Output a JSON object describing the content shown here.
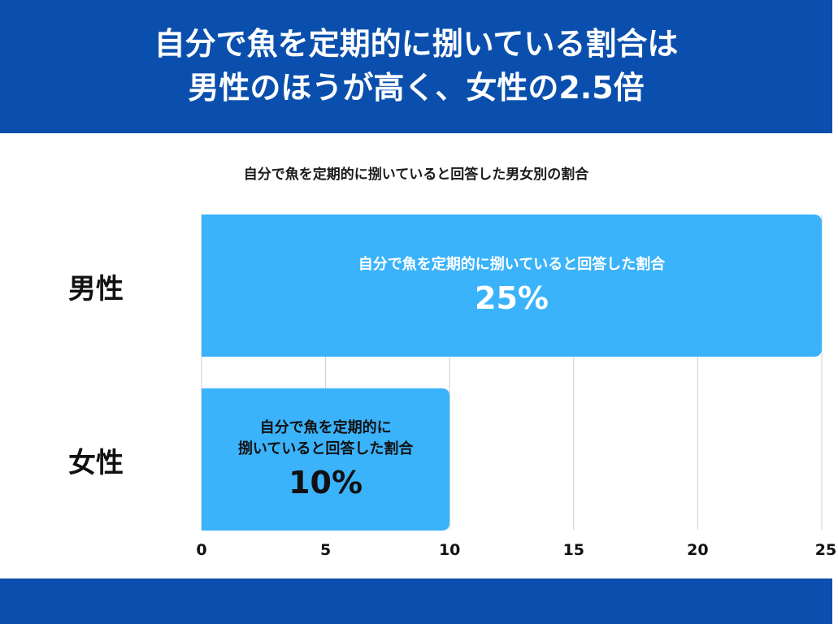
{
  "header": {
    "line1": "自分で魚を定期的に捌いている割合は",
    "line2": "男性のほうが高く、女性の2.5倍"
  },
  "colors": {
    "band": "#0a4fad",
    "bar": "#3bb3fb",
    "grid": "#cccccc"
  },
  "chart_data": {
    "type": "bar",
    "orientation": "horizontal",
    "title": "自分で魚を定期的に捌いていると回答した男女別の割合",
    "categories": [
      "男性",
      "女性"
    ],
    "values": [
      25,
      10
    ],
    "bar_labels": [
      {
        "desc": "自分で魚を定期的に捌いていると回答した割合",
        "value": "25%"
      },
      {
        "desc": "自分で魚を定期的に\n捌いていると回答した割合",
        "value": "10%"
      }
    ],
    "xlim": [
      0,
      25
    ],
    "xticks": [
      "0",
      "5",
      "10",
      "15",
      "20",
      "25"
    ],
    "grid": true
  }
}
